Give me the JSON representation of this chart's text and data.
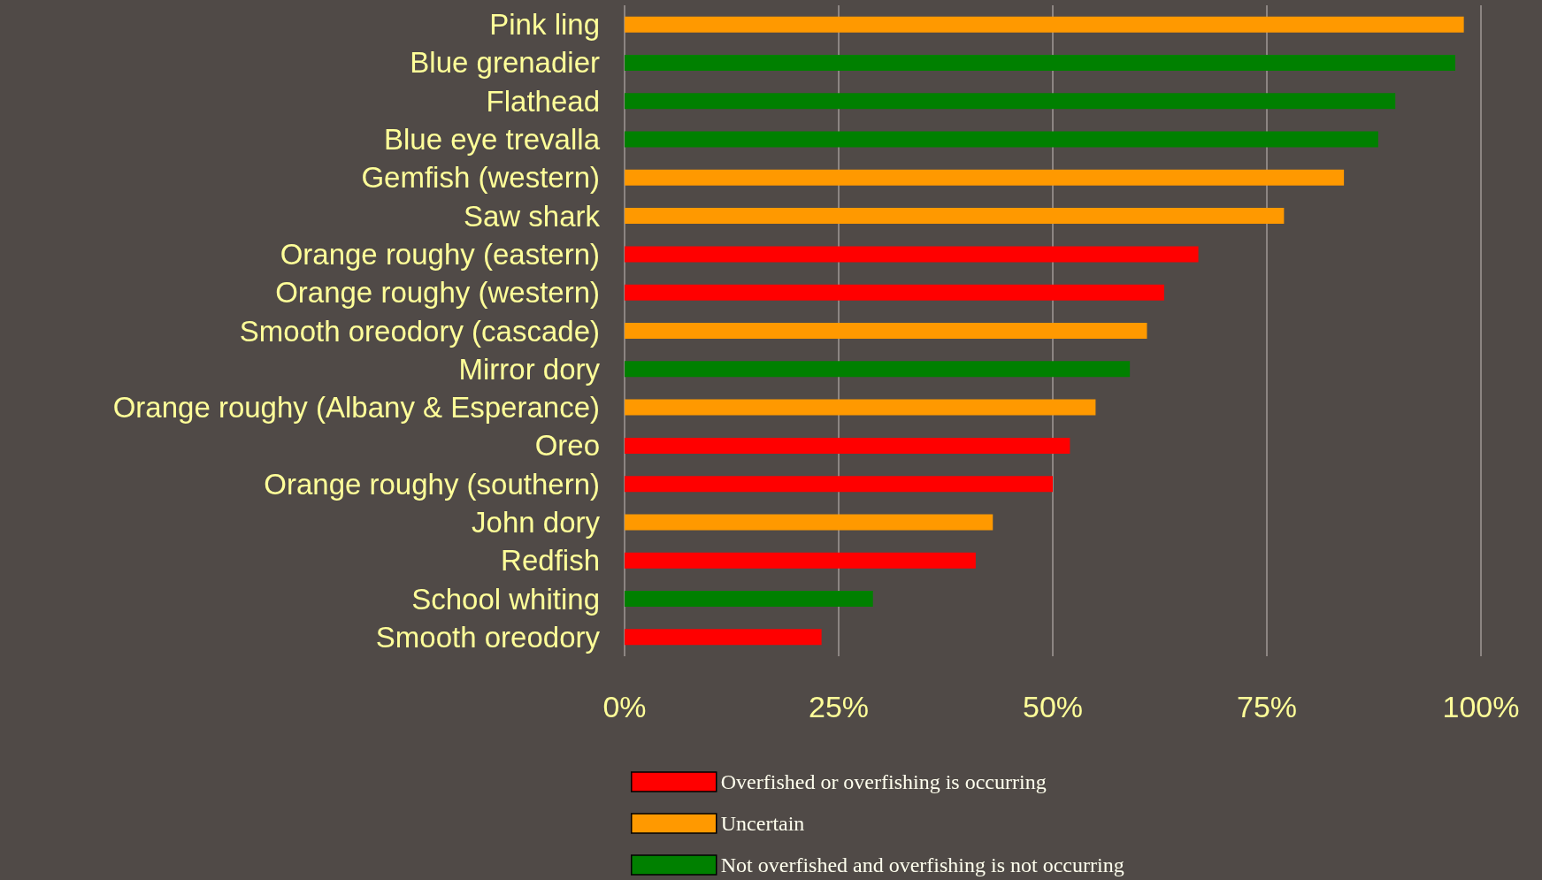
{
  "chart_data": {
    "type": "bar",
    "orientation": "horizontal",
    "stacked": true,
    "categories": [
      "Pink ling",
      "Blue grenadier",
      "Flathead",
      "Blue eye trevalla",
      "Gemfish (western)",
      "Saw shark",
      "Orange roughy (eastern)",
      "Orange roughy (western)",
      "Smooth oreodory (cascade)",
      "Mirror dory",
      "Orange roughy (Albany & Esperance)",
      "Oreo",
      "Orange roughy (southern)",
      "John dory",
      "Redfish",
      "School whiting",
      "Smooth oreodory"
    ],
    "series": [
      {
        "name": "Overfished or overfishing is occurring",
        "color": "#ff0000",
        "values": [
          null,
          null,
          null,
          null,
          null,
          null,
          67,
          63,
          null,
          null,
          null,
          52,
          50,
          null,
          41,
          null,
          23
        ]
      },
      {
        "name": "Uncertain",
        "color": "#ff9900",
        "values": [
          98,
          null,
          null,
          null,
          84,
          77,
          null,
          null,
          61,
          null,
          55,
          null,
          null,
          43,
          null,
          null,
          null
        ]
      },
      {
        "name": "Not overfished and overfishing is not occurring",
        "color": "#008000",
        "values": [
          null,
          97,
          90,
          88,
          null,
          null,
          null,
          null,
          null,
          59,
          null,
          null,
          null,
          null,
          null,
          29,
          null
        ]
      }
    ],
    "xlim": [
      0,
      100
    ],
    "xticks": [
      {
        "value": 0,
        "label": "0%"
      },
      {
        "value": 25,
        "label": "25%"
      },
      {
        "value": 50,
        "label": "50%"
      },
      {
        "value": 75,
        "label": "75%"
      },
      {
        "value": 100,
        "label": "100%"
      }
    ],
    "grid": "x",
    "legend": "bottom"
  }
}
